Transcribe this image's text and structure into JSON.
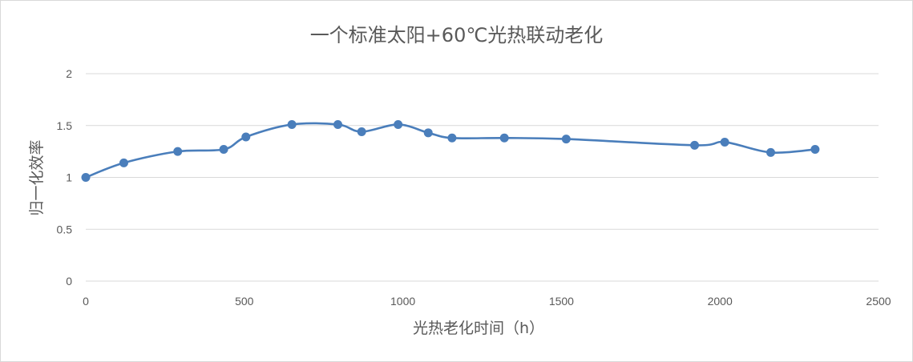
{
  "chart_data": {
    "type": "line",
    "title": "一个标准太阳+60℃光热联动老化",
    "xlabel": "光热老化时间（h）",
    "ylabel": "归一化效率",
    "xlim": [
      0,
      2500
    ],
    "ylim": [
      0,
      2
    ],
    "xticks": [
      0,
      500,
      1000,
      1500,
      2000,
      2500
    ],
    "yticks": [
      0,
      0.5,
      1,
      1.5,
      2
    ],
    "xtick_labels": [
      "0",
      "500",
      "1000",
      "1500",
      "2000",
      "2500"
    ],
    "ytick_labels": [
      "0",
      "0.5",
      "1",
      "1.5",
      "2"
    ],
    "grid": true,
    "smooth": true,
    "line_color": "#4a7ebb",
    "grid_color": "#d9d9d9",
    "series": [
      {
        "x": [
          0,
          120,
          290,
          435,
          505,
          650,
          795,
          870,
          985,
          1080,
          1155,
          1320,
          1515,
          1920,
          2015,
          2160,
          2300
        ],
        "y": [
          1.0,
          1.14,
          1.25,
          1.27,
          1.39,
          1.51,
          1.51,
          1.44,
          1.51,
          1.43,
          1.38,
          1.38,
          1.37,
          1.31,
          1.34,
          1.24,
          1.27
        ]
      }
    ]
  }
}
